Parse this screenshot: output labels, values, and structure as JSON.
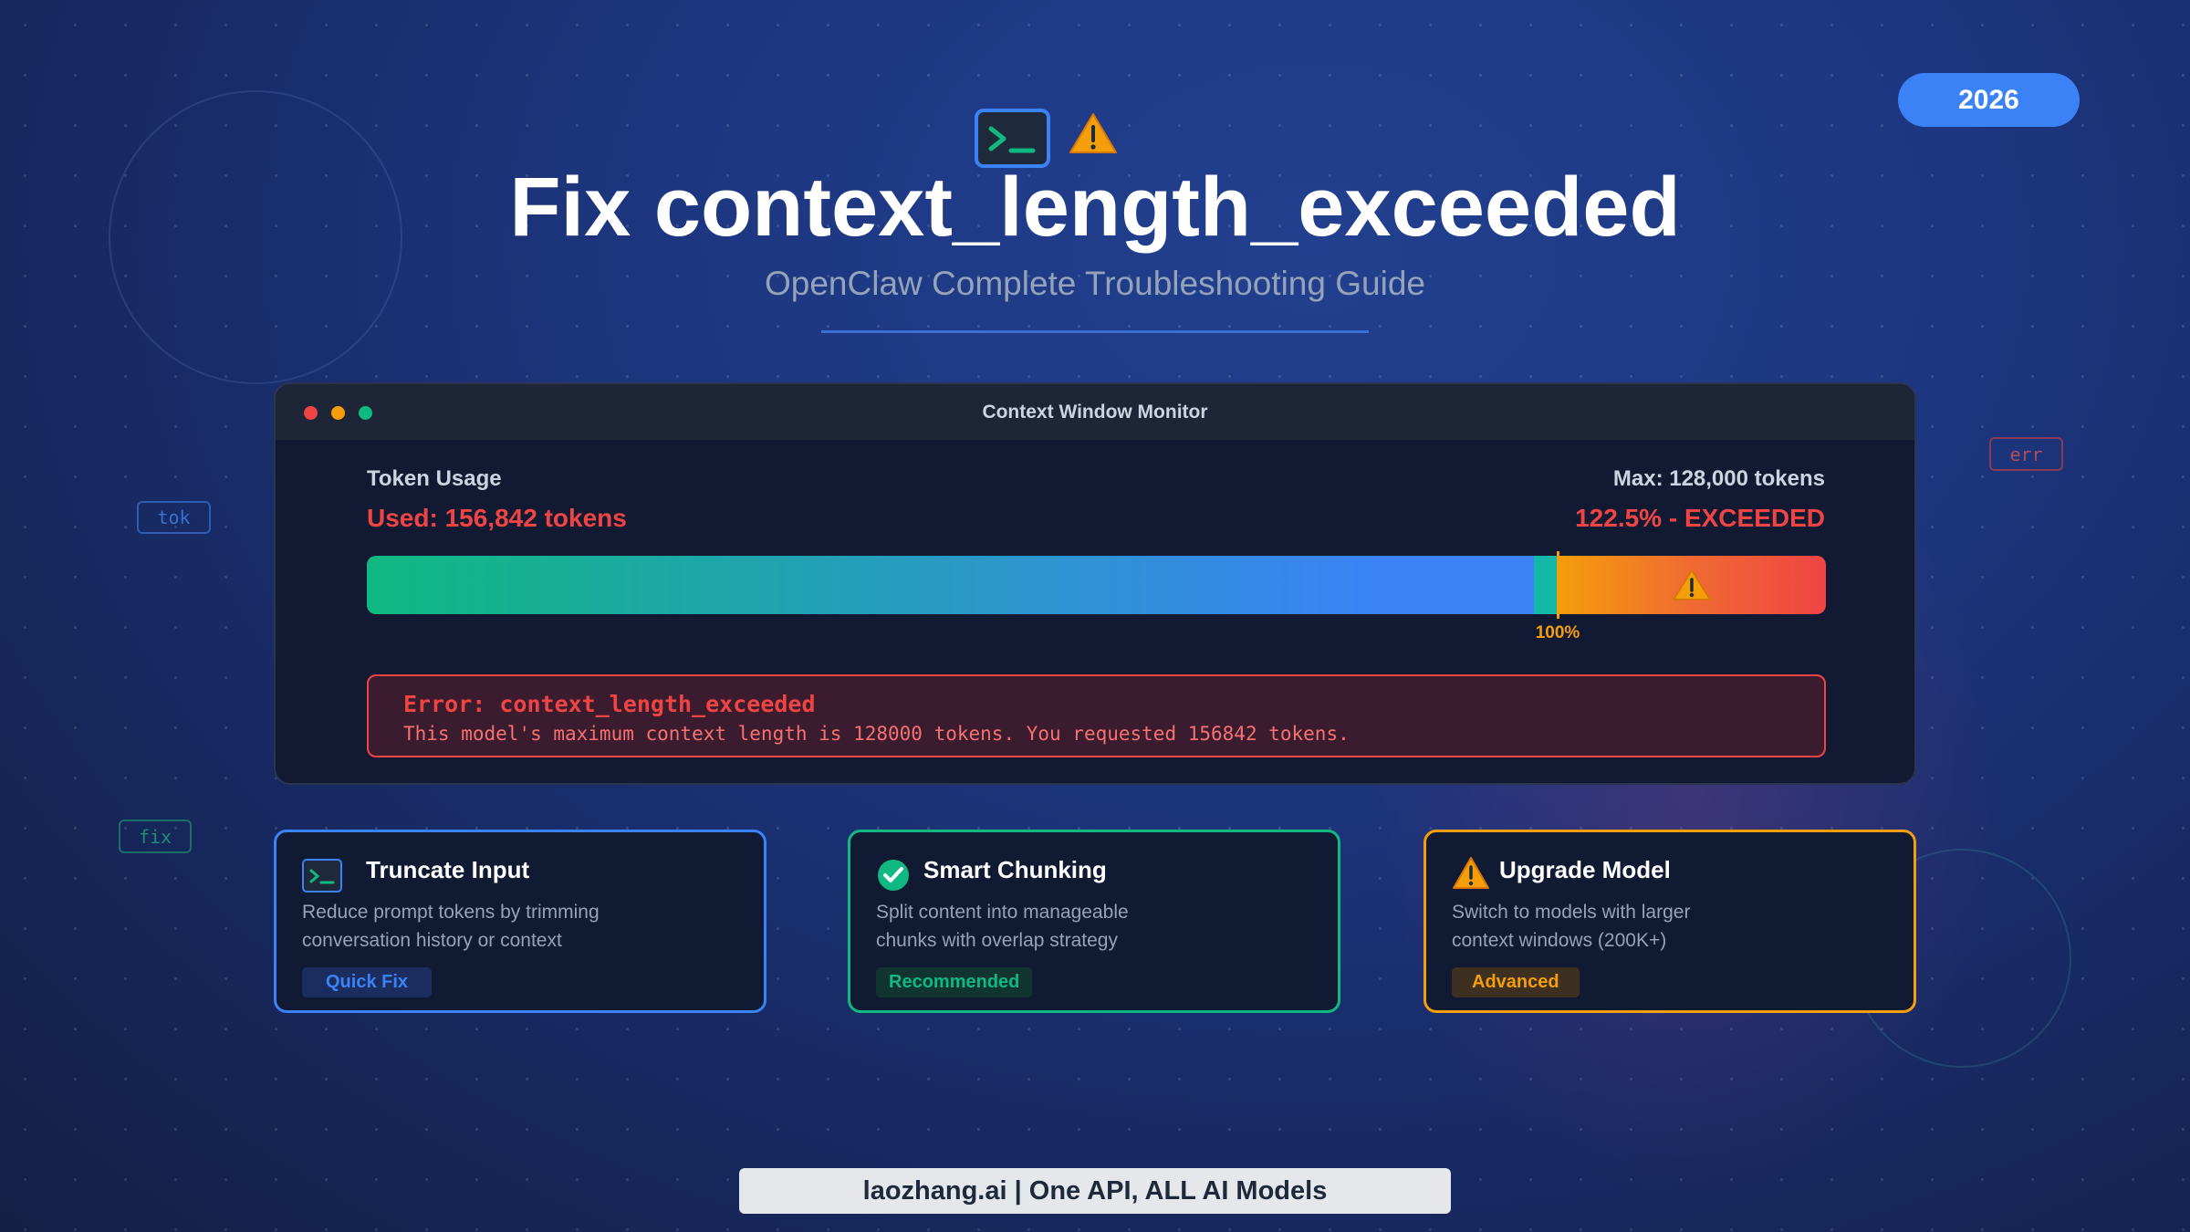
{
  "year_badge": "2026",
  "decor_tags": {
    "tok": "tok",
    "err": "err",
    "fix": "fix"
  },
  "header": {
    "title": "Fix context_length_exceeded",
    "subtitle": "OpenClaw Complete Troubleshooting Guide"
  },
  "monitor": {
    "window_title": "Context Window Monitor",
    "token_usage_label": "Token Usage",
    "max_label": "Max: 128,000 tokens",
    "used_label": "Used: 156,842 tokens",
    "percent_label": "122.5% - EXCEEDED",
    "usage_percent": 122.5,
    "limit_marker_label": "100%",
    "error_title": "Error: context_length_exceeded",
    "error_message": "This model's maximum context length is 128000 tokens. You requested 156842 tokens."
  },
  "cards": [
    {
      "title": "Truncate Input",
      "desc_line1": "Reduce prompt tokens by trimming",
      "desc_line2": "conversation history or context",
      "badge": "Quick Fix",
      "icon": "terminal-icon",
      "color": "#3b82f6"
    },
    {
      "title": "Smart Chunking",
      "desc_line1": "Split content into manageable",
      "desc_line2": "chunks with overlap strategy",
      "badge": "Recommended",
      "icon": "check-circle-icon",
      "color": "#10b981"
    },
    {
      "title": "Upgrade Model",
      "desc_line1": "Switch to models with larger",
      "desc_line2": "context windows (200K+)",
      "badge": "Advanced",
      "icon": "warning-icon",
      "color": "#f59e0b"
    }
  ],
  "footer": "laozhang.ai | One API, ALL AI Models",
  "colors": {
    "accent": "#3b82f6",
    "error": "#ef4444",
    "warning": "#f59e0b",
    "success": "#10b981"
  }
}
